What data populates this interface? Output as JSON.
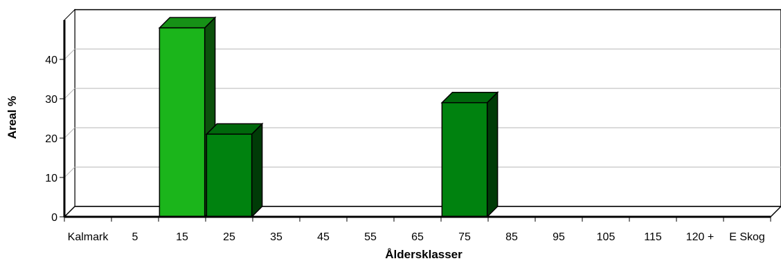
{
  "chart_data": {
    "type": "bar",
    "title": "",
    "xlabel": "Åldersklasser",
    "ylabel": "Areal %",
    "categories": [
      "Kalmark",
      "5",
      "15",
      "25",
      "35",
      "45",
      "55",
      "65",
      "75",
      "85",
      "95",
      "105",
      "115",
      "120 +",
      "E Skog"
    ],
    "values": [
      0,
      0,
      48,
      21,
      0,
      0,
      0,
      0,
      29,
      0,
      0,
      0,
      0,
      0,
      0
    ],
    "bar_colors": [
      "#00820f",
      "#00820f",
      "#1bb51b",
      "#00820f",
      "#00820f",
      "#00820f",
      "#00820f",
      "#00820f",
      "#00820f",
      "#00820f",
      "#00820f",
      "#00820f",
      "#00820f",
      "#00820f",
      "#00820f"
    ],
    "yticks": [
      0,
      10,
      20,
      30,
      40
    ],
    "ylim": [
      0,
      50
    ],
    "grid": true,
    "legend": "none"
  }
}
